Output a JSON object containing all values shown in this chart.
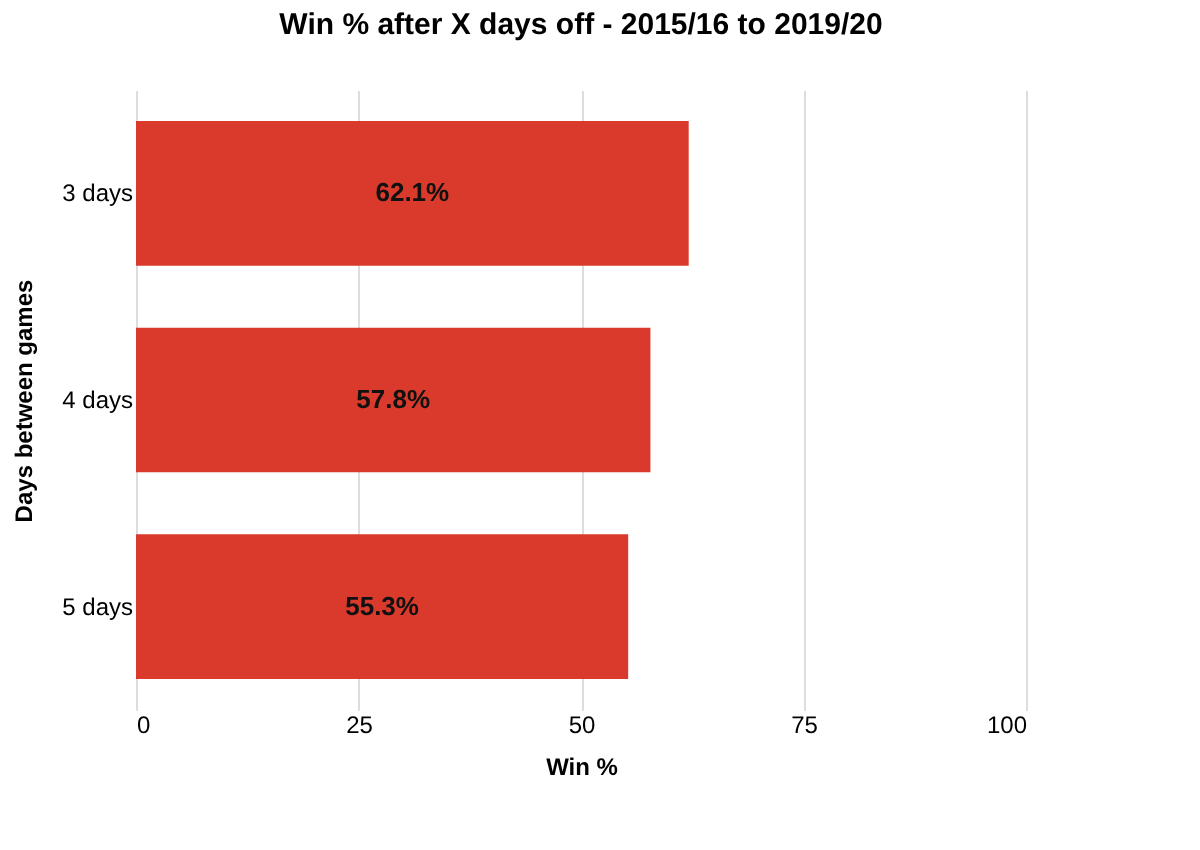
{
  "chart_data": {
    "type": "bar",
    "orientation": "horizontal",
    "title": "Win % after X days off - 2015/16 to 2019/20",
    "xlabel": "Win %",
    "ylabel": "Days between games",
    "categories": [
      "3 days",
      "4 days",
      "5 days"
    ],
    "values": [
      62.1,
      57.8,
      55.3
    ],
    "color": "#d93a2b",
    "value_labels": [
      "62.1%",
      "57.8%",
      "55.3%"
    ],
    "xlim": [
      0,
      100
    ],
    "xticks": [
      0,
      25,
      50,
      75,
      100
    ],
    "grid": "x"
  }
}
